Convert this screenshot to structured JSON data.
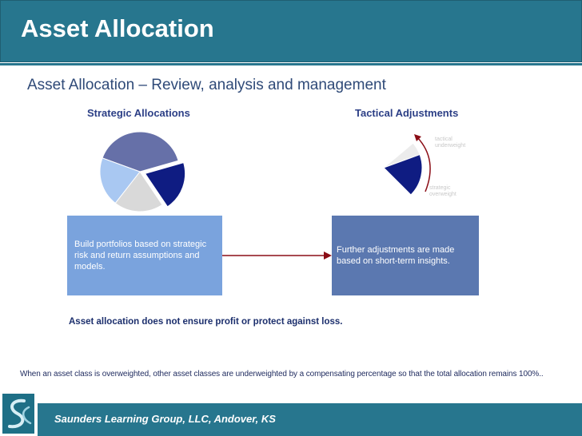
{
  "header": {
    "title": "Asset Allocation"
  },
  "subtitle": "Asset Allocation – Review, analysis and management",
  "strategic": {
    "heading": "Strategic Allocations",
    "description": "Build portfolios based on strategic risk and return assumptions and models."
  },
  "tactical": {
    "heading": "Tactical Adjustments",
    "label_underweight": "tactical underweight",
    "label_overweight": "strategic overweight",
    "description": "Further adjustments are made based on short-term insights."
  },
  "disclaimer": "Asset allocation does not ensure profit or protect against loss.",
  "footnote": "When an asset class is overweighted, other asset classes are underweighted by a compensating percentage so that the total allocation remains 100%..",
  "footer": {
    "text": "Saunders Learning Group, LLC, Andover, KS"
  },
  "colors": {
    "header": "#27768e",
    "pie_purple": "#6670a8",
    "pie_navy": "#0f1c82",
    "pie_gray": "#d9d9d9",
    "pie_lightblue": "#a9c8f2",
    "arrow": "#8b0d16"
  },
  "chart_data": [
    {
      "type": "pie",
      "title": "Strategic Allocations",
      "values": [
        40,
        20,
        20,
        20
      ],
      "colors": [
        "#6670a8",
        "#0f1c82",
        "#d9d9d9",
        "#a9c8f2"
      ],
      "exploded_slice": 1
    },
    {
      "type": "pie",
      "title": "Tactical Adjustments",
      "values": [
        25,
        75
      ],
      "colors": [
        "#0f1c82",
        "#ececec"
      ],
      "annotations": [
        "tactical underweight",
        "strategic overweight"
      ]
    }
  ],
  "icons": {
    "logo": "slg-logo-icon",
    "arrow": "right-arrow-icon",
    "curved_arrow": "curved-arrow-icon"
  }
}
